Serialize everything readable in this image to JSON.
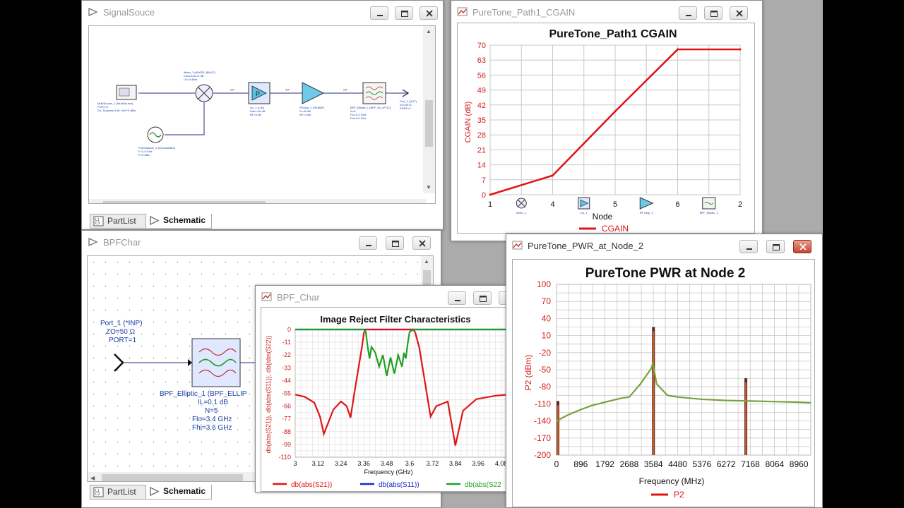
{
  "windows": {
    "signal_source": {
      "title": "SignalSouce",
      "tabs": [
        {
          "label": "PartList"
        },
        {
          "label": "Schematic"
        }
      ],
      "labels": {
        "source": "MultiSource_1 (MultiSource)\nPORT=1\nDV_Sources=CW: Vin²+0 dBm",
        "osc": "FixOscillator_3 (FixOscillator)\nF=3.4 GHz\nP=0 dBm",
        "mixer": "Mixer_1 (MIXER_BASIC)\nConvGain=0 dB\nLO=0 dBm",
        "amp1": "Lin_1 (LIN)\nGain=20 dB\nNF=5 dB",
        "amp2": "RFAmp_1 (RFAMP)\nG=40 dB\nNF=4 dB",
        "filter": "BPF_Elliptic_1 (BPF_ELLIPTIC)\nN=5\nFlo=3.4 GHz\nFhi=3.6 GHz",
        "port_out": "Port_2 (OUT)\nZO=50 Ω\nPORT=2"
      }
    },
    "cgain": {
      "title": "PureTone_Path1_CGAIN",
      "chart_title": "PureTone_Path1 CGAIN",
      "legend": "CGAIN",
      "xlabel": "Node",
      "ylabel": "CGAIN (dB)",
      "node_labels": [
        "Mixer_1",
        "Lin_1",
        "RF Amp_1",
        "BPF_Elliptic_1"
      ]
    },
    "bpf_char_schematic": {
      "title": "BPFChar",
      "tabs": [
        {
          "label": "PartList"
        },
        {
          "label": "Schematic"
        }
      ],
      "port_label": [
        "Port_1 (*INP)",
        "ZO=50 Ω",
        "PORT=1"
      ],
      "filter_label": [
        "BPF_Elliptic_1 (BPF_ELLIP",
        "IL=0.1 dB",
        "N=5",
        "Flo=3.4 GHz",
        "Fhi=3.6 GHz"
      ]
    },
    "bpf_char_chart": {
      "title": "BPF_Char",
      "chart_title": "Image Reject Filter Characteristics",
      "ylabel": "db(abs(S21)), db(abs(S11)), db(abs(S22))",
      "xlabel": "Frequency (GHz)",
      "legend": [
        "db(abs(S21))",
        "db(abs(S11))",
        "db(abs(S22"
      ]
    },
    "pwr_node2": {
      "title": "PureTone_PWR_at_Node_2",
      "chart_title": "PureTone PWR at Node 2",
      "ylabel": "P2 (dBm)",
      "xlabel": "Frequency (MHz)",
      "legend": "P2"
    }
  },
  "colors": {
    "red": "#e01414",
    "blue": "#1428c8",
    "green": "#22a022",
    "olive": "#7aa040",
    "grid": "#c8c8c8"
  },
  "chart_data": [
    {
      "type": "line",
      "title": "PureTone_Path1 CGAIN",
      "xlabel": "Node",
      "ylabel": "CGAIN (dB)",
      "categories": [
        "1",
        "4",
        "5",
        "6",
        "2"
      ],
      "yticks": [
        0,
        7,
        14,
        21,
        28,
        35,
        42,
        49,
        56,
        63,
        70
      ],
      "ylim": [
        0,
        70
      ],
      "series": [
        {
          "name": "CGAIN",
          "values": [
            0,
            9,
            39,
            68,
            68
          ]
        }
      ],
      "grid": true,
      "legend": "bottom"
    },
    {
      "type": "line",
      "title": "Image Reject Filter Characteristics",
      "xlabel": "Frequency (GHz)",
      "ylabel": "db(abs(S21)), db(abs(S11)), db(abs(S22))",
      "xticks": [
        "3",
        "3.12",
        "3.24",
        "3.36",
        "3.48",
        "3.6",
        "3.72",
        "3.84",
        "3.96",
        "4.08"
      ],
      "yticks": [
        0,
        -11,
        -22,
        -33,
        -44,
        -55,
        -66,
        -77,
        -88,
        -99,
        -110
      ],
      "xlim": [
        3,
        4.2
      ],
      "ylim": [
        -110,
        0
      ],
      "series": [
        {
          "name": "db(abs(S21))",
          "x": [
            3,
            3.05,
            3.1,
            3.13,
            3.15,
            3.2,
            3.24,
            3.27,
            3.29,
            3.31,
            3.33,
            3.35,
            3.36,
            3.37,
            3.38,
            3.6,
            3.62,
            3.63,
            3.65,
            3.67,
            3.69,
            3.71,
            3.74,
            3.8,
            3.84,
            3.88,
            3.95,
            4.05,
            4.2
          ],
          "y": [
            -56,
            -58,
            -63,
            -75,
            -90,
            -69,
            -62,
            -66,
            -76,
            -55,
            -35,
            -15,
            -3,
            0,
            0,
            0,
            0,
            -3,
            -15,
            -35,
            -55,
            -75,
            -66,
            -62,
            -100,
            -70,
            -60,
            -57,
            -55
          ]
        },
        {
          "name": "db(abs(S11))",
          "x": [
            3,
            4.2
          ],
          "y": [
            0,
            0
          ]
        },
        {
          "name": "db(abs(S22",
          "x": [
            3,
            3.36,
            3.37,
            3.38,
            3.39,
            3.4,
            3.42,
            3.44,
            3.46,
            3.48,
            3.5,
            3.52,
            3.54,
            3.56,
            3.57,
            3.58,
            3.59,
            3.6,
            3.62,
            4.2
          ],
          "y": [
            0,
            0,
            -2,
            -15,
            -25,
            -15,
            -20,
            -32,
            -22,
            -40,
            -24,
            -38,
            -22,
            -32,
            -20,
            -25,
            -12,
            -2,
            0,
            0
          ]
        }
      ],
      "grid": true,
      "legend": "bottom"
    },
    {
      "type": "line",
      "title": "PureTone PWR at Node 2",
      "xlabel": "Frequency (MHz)",
      "ylabel": "P2 (dBm)",
      "xticks": [
        0,
        896,
        1792,
        2688,
        3584,
        4480,
        5376,
        6272,
        7168,
        8064,
        8960
      ],
      "yticks": [
        100,
        70,
        40,
        10,
        -20,
        -50,
        -80,
        -110,
        -140,
        -170,
        -200
      ],
      "xlim": [
        0,
        9400
      ],
      "ylim": [
        -200,
        100
      ],
      "series": [
        {
          "name": "P2",
          "x": [
            0,
            400,
            896,
            1300,
            1792,
            2400,
            2688,
            3100,
            3500,
            3550,
            3600,
            3700,
            4100,
            4480,
            5376,
            6272,
            7168,
            8064,
            8960,
            9400
          ],
          "y": [
            -140,
            -130,
            -120,
            -113,
            -107,
            -100,
            -98,
            -75,
            -48,
            -40,
            -48,
            -75,
            -95,
            -98,
            -102,
            -104,
            -105,
            -106,
            -107,
            -108
          ]
        }
      ],
      "spikes": [
        {
          "x": 0,
          "top": -105
        },
        {
          "x": 3584,
          "top": 25
        },
        {
          "x": 7000,
          "top": -65
        }
      ],
      "grid": true,
      "legend": "bottom"
    }
  ]
}
